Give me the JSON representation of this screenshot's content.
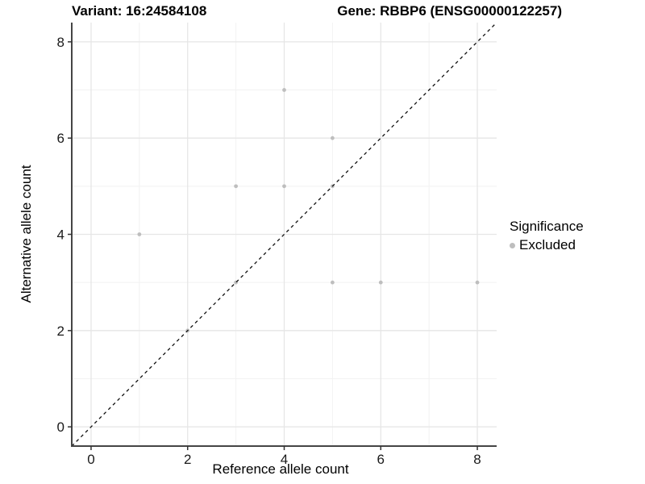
{
  "window": {
    "title": "Allele count scatter plot"
  },
  "colors": {
    "background": "#ffffff",
    "point": "#bebebe",
    "grid_major": "#e6e6e6",
    "grid_minor": "#f2f2f2",
    "axis_line": "#454545",
    "tick": "#333333",
    "identity_line": "#111111",
    "text": "#000000"
  },
  "chart_data": {
    "type": "scatter",
    "title_left": "Variant: 16:24584108",
    "title_right": "Gene: RBBP6 (ENSG00000122257)",
    "xlabel": "Reference allele count",
    "ylabel": "Alternative allele count",
    "xlim": [
      -0.4,
      8.4
    ],
    "ylim": [
      -0.4,
      8.4
    ],
    "xticks": [
      0,
      2,
      4,
      6,
      8
    ],
    "yticks": [
      0,
      2,
      4,
      6,
      8
    ],
    "xticks_minor": [
      1,
      3,
      5,
      7
    ],
    "yticks_minor": [
      1,
      3,
      5,
      7
    ],
    "grid": true,
    "identity_line": {
      "style": "dashed",
      "from": [
        -0.4,
        -0.4
      ],
      "to": [
        8.4,
        8.4
      ]
    },
    "series": [
      {
        "name": "Excluded",
        "color": "#bebebe",
        "points": [
          [
            1,
            4
          ],
          [
            2,
            2
          ],
          [
            3,
            3
          ],
          [
            3,
            5
          ],
          [
            4,
            5
          ],
          [
            4,
            7
          ],
          [
            5,
            3
          ],
          [
            5,
            5
          ],
          [
            5,
            6
          ],
          [
            6,
            3
          ],
          [
            8,
            3
          ]
        ]
      }
    ],
    "legend": {
      "position": "right",
      "title": "Significance",
      "entries": [
        {
          "label": "Excluded",
          "color": "#bebebe"
        }
      ]
    }
  }
}
